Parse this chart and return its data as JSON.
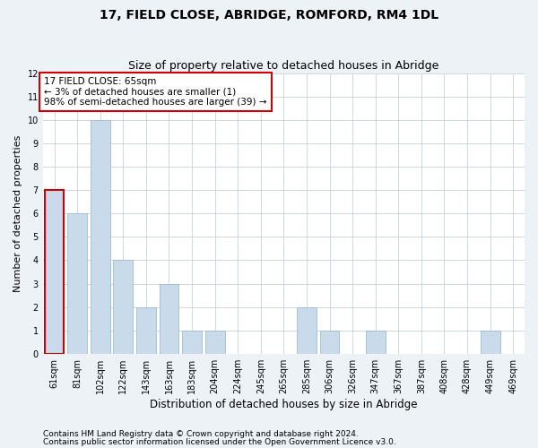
{
  "title": "17, FIELD CLOSE, ABRIDGE, ROMFORD, RM4 1DL",
  "subtitle": "Size of property relative to detached houses in Abridge",
  "xlabel": "Distribution of detached houses by size in Abridge",
  "ylabel": "Number of detached properties",
  "categories": [
    "61sqm",
    "81sqm",
    "102sqm",
    "122sqm",
    "143sqm",
    "163sqm",
    "183sqm",
    "204sqm",
    "224sqm",
    "245sqm",
    "265sqm",
    "285sqm",
    "306sqm",
    "326sqm",
    "347sqm",
    "367sqm",
    "387sqm",
    "408sqm",
    "428sqm",
    "449sqm",
    "469sqm"
  ],
  "values": [
    7,
    6,
    10,
    4,
    2,
    3,
    1,
    1,
    0,
    0,
    0,
    2,
    1,
    0,
    1,
    0,
    0,
    0,
    0,
    1,
    0
  ],
  "bar_color": "#c9daea",
  "bar_edge_color": "#a0bcd0",
  "highlight_edge_color": "#cc0000",
  "annotation_text": "17 FIELD CLOSE: 65sqm\n← 3% of detached houses are smaller (1)\n98% of semi-detached houses are larger (39) →",
  "annotation_box_color": "white",
  "annotation_box_edge_color": "#cc0000",
  "ylim": [
    0,
    12
  ],
  "yticks": [
    0,
    1,
    2,
    3,
    4,
    5,
    6,
    7,
    8,
    9,
    10,
    11,
    12
  ],
  "footer_line1": "Contains HM Land Registry data © Crown copyright and database right 2024.",
  "footer_line2": "Contains public sector information licensed under the Open Government Licence v3.0.",
  "background_color": "#edf2f7",
  "plot_background_color": "#ffffff",
  "grid_color": "#c8d0d8",
  "title_fontsize": 10,
  "subtitle_fontsize": 9,
  "xlabel_fontsize": 8.5,
  "ylabel_fontsize": 8,
  "tick_fontsize": 7,
  "annotation_fontsize": 7.5,
  "footer_fontsize": 6.5
}
